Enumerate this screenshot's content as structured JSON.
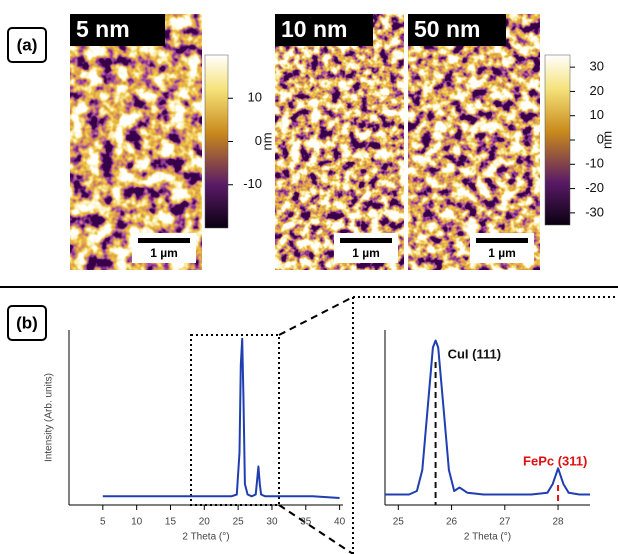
{
  "panel_a": {
    "label": "(a)",
    "images": [
      {
        "label": "5 nm",
        "scale": "1 µm"
      },
      {
        "label": "10 nm",
        "scale": "1 µm"
      },
      {
        "label": "50 nm",
        "scale": "1 µm"
      }
    ],
    "colorbars": [
      {
        "ticks": [
          10,
          0,
          -10
        ],
        "range": [
          -20,
          20
        ],
        "unit": "nm"
      },
      {
        "ticks": [
          30,
          20,
          10,
          0,
          -10,
          -20,
          -30
        ],
        "range": [
          -35,
          35
        ],
        "unit": "nm"
      }
    ]
  },
  "panel_b": {
    "label": "(b)"
  },
  "chart_data": [
    {
      "type": "line",
      "xlabel": "2 Theta (°)",
      "ylabel": "Intensity (Arb. units)",
      "xlim": [
        0,
        40.5
      ],
      "xticks": [
        5,
        10,
        15,
        20,
        25,
        30,
        35,
        40
      ],
      "ylim": [
        0,
        1
      ],
      "x": [
        5,
        8,
        12,
        16,
        20,
        22,
        24,
        24.8,
        25.2,
        25.4,
        25.6,
        25.8,
        26,
        26.4,
        27,
        27.6,
        27.8,
        28,
        28.2,
        28.4,
        29,
        31,
        33,
        36,
        40
      ],
      "series": [
        {
          "color": "#1f3fb0",
          "values": [
            0.05,
            0.05,
            0.05,
            0.05,
            0.05,
            0.05,
            0.05,
            0.06,
            0.3,
            0.8,
            0.95,
            0.6,
            0.12,
            0.06,
            0.05,
            0.06,
            0.14,
            0.22,
            0.12,
            0.06,
            0.05,
            0.05,
            0.05,
            0.05,
            0.04
          ]
        }
      ]
    },
    {
      "type": "line",
      "xlabel": "2 Theta (°)",
      "xlim": [
        24.75,
        28.6
      ],
      "xticks": [
        25,
        26,
        27,
        28
      ],
      "ylim": [
        0,
        1
      ],
      "x": [
        24.75,
        25,
        25.2,
        25.35,
        25.45,
        25.55,
        25.65,
        25.7,
        25.75,
        25.85,
        25.95,
        26.05,
        26.15,
        26.3,
        26.6,
        27,
        27.5,
        27.8,
        27.9,
        28,
        28.1,
        28.2,
        28.4,
        28.6
      ],
      "series": [
        {
          "color": "#1f3fb0",
          "values": [
            0.06,
            0.06,
            0.06,
            0.08,
            0.2,
            0.55,
            0.9,
            0.94,
            0.9,
            0.55,
            0.2,
            0.08,
            0.1,
            0.07,
            0.06,
            0.06,
            0.06,
            0.07,
            0.12,
            0.21,
            0.12,
            0.07,
            0.06,
            0.06
          ]
        }
      ],
      "annotations": [
        {
          "text": "CuI (111)",
          "x": 25.7,
          "color": "#111111"
        },
        {
          "text": "FePc (311)",
          "x": 28,
          "color": "#e01010"
        }
      ]
    }
  ]
}
